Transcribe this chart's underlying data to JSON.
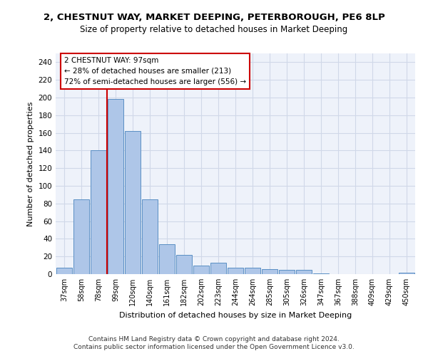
{
  "title1": "2, CHESTNUT WAY, MARKET DEEPING, PETERBOROUGH, PE6 8LP",
  "title2": "Size of property relative to detached houses in Market Deeping",
  "xlabel": "Distribution of detached houses by size in Market Deeping",
  "ylabel": "Number of detached properties",
  "categories": [
    "37sqm",
    "58sqm",
    "78sqm",
    "99sqm",
    "120sqm",
    "140sqm",
    "161sqm",
    "182sqm",
    "202sqm",
    "223sqm",
    "244sqm",
    "264sqm",
    "285sqm",
    "305sqm",
    "326sqm",
    "347sqm",
    "367sqm",
    "388sqm",
    "409sqm",
    "429sqm",
    "450sqm"
  ],
  "values": [
    7,
    85,
    140,
    198,
    162,
    85,
    34,
    22,
    10,
    13,
    7,
    7,
    6,
    5,
    5,
    1,
    0,
    0,
    0,
    0,
    2
  ],
  "bar_color": "#aec6e8",
  "bar_edge_color": "#5a8fc4",
  "grid_color": "#d0d8e8",
  "background_color": "#eef2fa",
  "annotation_box_text": "2 CHESTNUT WAY: 97sqm\n← 28% of detached houses are smaller (213)\n72% of semi-detached houses are larger (556) →",
  "vline_x_index": 3,
  "vline_color": "#cc0000",
  "annotation_box_color": "#cc0000",
  "ylim": [
    0,
    250
  ],
  "yticks": [
    0,
    20,
    40,
    60,
    80,
    100,
    120,
    140,
    160,
    180,
    200,
    220,
    240
  ],
  "footer1": "Contains HM Land Registry data © Crown copyright and database right 2024.",
  "footer2": "Contains public sector information licensed under the Open Government Licence v3.0.",
  "title1_fontsize": 9.5,
  "title2_fontsize": 8.5,
  "xlabel_fontsize": 8,
  "ylabel_fontsize": 8,
  "footer_fontsize": 6.5,
  "annot_fontsize": 7.5
}
